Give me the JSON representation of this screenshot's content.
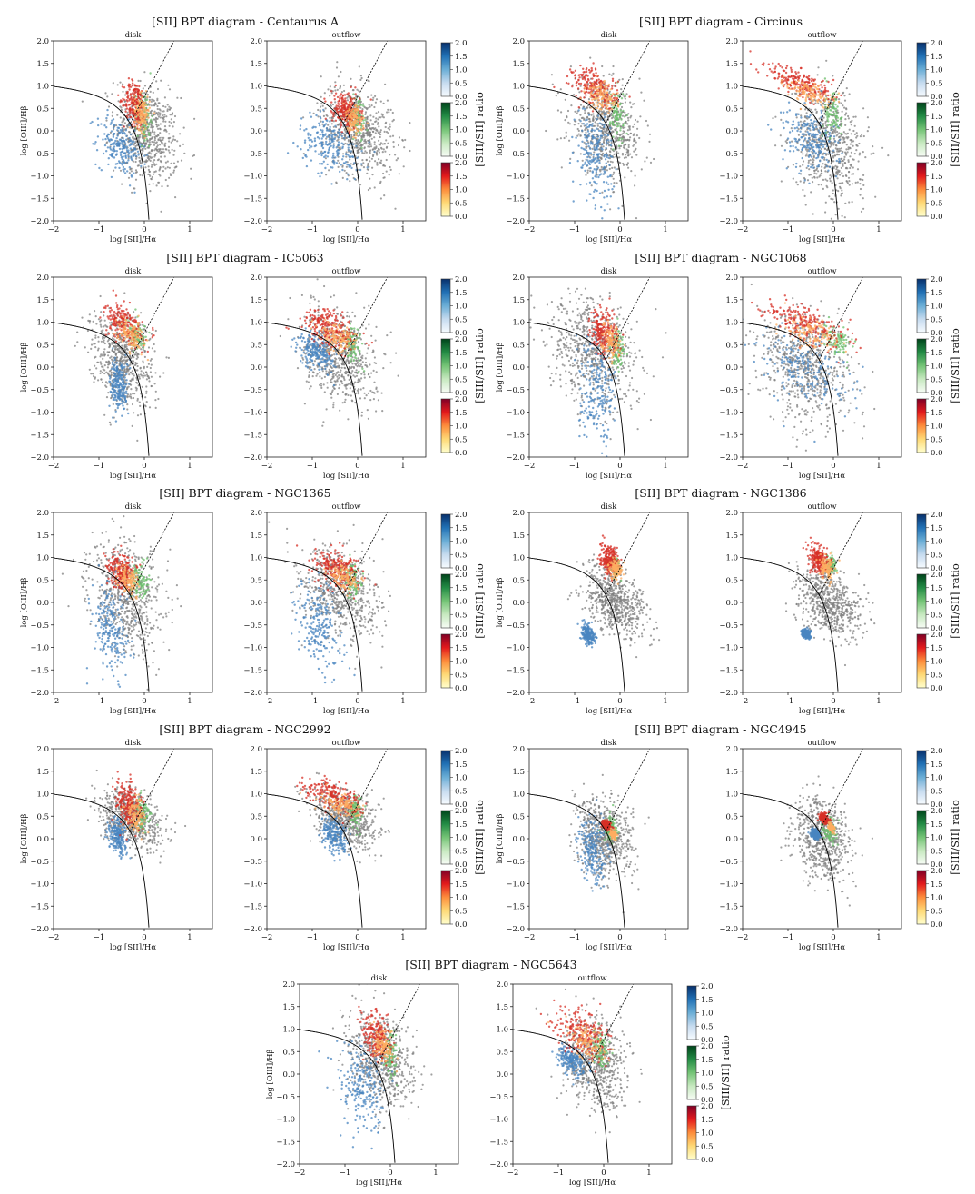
{
  "figure": {
    "panel_titles": [
      "disk",
      "outflow"
    ],
    "x_label": "log [SII]/Hα",
    "y_label": "log [OIII]/Hβ",
    "colorbar_label": "[SIII/SII] ratio",
    "colorbar_ticks": [
      "0.0",
      "0.5",
      "1.0",
      "1.5",
      "2.0"
    ],
    "x_ticks": [
      "−2",
      "−1",
      "0",
      "1"
    ],
    "y_ticks": [
      "−2.0",
      "−1.5",
      "−1.0",
      "−0.5",
      "0.0",
      "0.5",
      "1.0",
      "1.5",
      "2.0"
    ],
    "colors": {
      "star_forming": "#4a86c0",
      "liner": "#6cbf6c",
      "seyfert": "#d73027",
      "background": "#808080"
    }
  },
  "chart_data": [
    {
      "type": "scatter",
      "title": "[SII] BPT diagram - Centaurus A",
      "xlim": [
        -2,
        1.5
      ],
      "ylim": [
        -2,
        2
      ],
      "xlabel": "log [SII]/Hα",
      "ylabel": "log [OIII]/Hβ",
      "colorbar": {
        "label": "[SIII/SII] ratio",
        "range": [
          0,
          2
        ],
        "colormaps": [
          "Blues",
          "Greens",
          "YlOrRd"
        ]
      },
      "demarcation": {
        "max_starburst": "y = 0.72/(x - 0.32) + 1.30",
        "seyfert_liner": "y = 1.89x + 0.76"
      },
      "panels": [
        {
          "name": "disk"
        },
        {
          "name": "outflow"
        }
      ]
    },
    {
      "type": "scatter",
      "title": "[SII] BPT diagram - Circinus",
      "xlim": [
        -2,
        1.5
      ],
      "ylim": [
        -2,
        2
      ],
      "xlabel": "log [SII]/Hα",
      "ylabel": "log [OIII]/Hβ",
      "colorbar": {
        "label": "[SIII/SII] ratio",
        "range": [
          0,
          2
        ],
        "colormaps": [
          "Blues",
          "Greens",
          "YlOrRd"
        ]
      },
      "demarcation": {
        "max_starburst": "y = 0.72/(x - 0.32) + 1.30",
        "seyfert_liner": "y = 1.89x + 0.76"
      },
      "panels": [
        {
          "name": "disk"
        },
        {
          "name": "outflow"
        }
      ]
    },
    {
      "type": "scatter",
      "title": "[SII] BPT diagram - IC5063",
      "xlim": [
        -2,
        1.5
      ],
      "ylim": [
        -2,
        2
      ],
      "xlabel": "log [SII]/Hα",
      "ylabel": "log [OIII]/Hβ",
      "colorbar": {
        "label": "[SIII/SII] ratio",
        "range": [
          0,
          2
        ],
        "colormaps": [
          "Blues",
          "Greens",
          "YlOrRd"
        ]
      },
      "demarcation": {
        "max_starburst": "y = 0.72/(x - 0.32) + 1.30",
        "seyfert_liner": "y = 1.89x + 0.76"
      },
      "panels": [
        {
          "name": "disk"
        },
        {
          "name": "outflow"
        }
      ]
    },
    {
      "type": "scatter",
      "title": "[SII] BPT diagram - NGC1068",
      "xlim": [
        -2,
        1.5
      ],
      "ylim": [
        -2,
        2
      ],
      "xlabel": "log [SII]/Hα",
      "ylabel": "log [OIII]/Hβ",
      "colorbar": {
        "label": "[SIII/SII] ratio",
        "range": [
          0,
          2
        ],
        "colormaps": [
          "Blues",
          "Greens",
          "YlOrRd"
        ]
      },
      "demarcation": {
        "max_starburst": "y = 0.72/(x - 0.32) + 1.30",
        "seyfert_liner": "y = 1.89x + 0.76"
      },
      "panels": [
        {
          "name": "disk"
        },
        {
          "name": "outflow"
        }
      ]
    },
    {
      "type": "scatter",
      "title": "[SII] BPT diagram - NGC1365",
      "xlim": [
        -2,
        1.5
      ],
      "ylim": [
        -2,
        2
      ],
      "xlabel": "log [SII]/Hα",
      "ylabel": "log [OIII]/Hβ",
      "colorbar": {
        "label": "[SIII/SII] ratio",
        "range": [
          0,
          2
        ],
        "colormaps": [
          "Blues",
          "Greens",
          "YlOrRd"
        ]
      },
      "demarcation": {
        "max_starburst": "y = 0.72/(x - 0.32) + 1.30",
        "seyfert_liner": "y = 1.89x + 0.76"
      },
      "panels": [
        {
          "name": "disk"
        },
        {
          "name": "outflow"
        }
      ]
    },
    {
      "type": "scatter",
      "title": "[SII] BPT diagram - NGC1386",
      "xlim": [
        -2,
        1.5
      ],
      "ylim": [
        -2,
        2
      ],
      "xlabel": "log [SII]/Hα",
      "ylabel": "log [OIII]/Hβ",
      "colorbar": {
        "label": "[SIII/SII] ratio",
        "range": [
          0,
          2
        ],
        "colormaps": [
          "Blues",
          "Greens",
          "YlOrRd"
        ]
      },
      "demarcation": {
        "max_starburst": "y = 0.72/(x - 0.32) + 1.30",
        "seyfert_liner": "y = 1.89x + 0.76"
      },
      "panels": [
        {
          "name": "disk"
        },
        {
          "name": "outflow"
        }
      ]
    },
    {
      "type": "scatter",
      "title": "[SII] BPT diagram - NGC2992",
      "xlim": [
        -2,
        1.5
      ],
      "ylim": [
        -2,
        2
      ],
      "xlabel": "log [SII]/Hα",
      "ylabel": "log [OIII]/Hβ",
      "colorbar": {
        "label": "[SIII/SII] ratio",
        "range": [
          0,
          2
        ],
        "colormaps": [
          "Blues",
          "Greens",
          "YlOrRd"
        ]
      },
      "demarcation": {
        "max_starburst": "y = 0.72/(x - 0.32) + 1.30",
        "seyfert_liner": "y = 1.89x + 0.76"
      },
      "panels": [
        {
          "name": "disk"
        },
        {
          "name": "outflow"
        }
      ]
    },
    {
      "type": "scatter",
      "title": "[SII] BPT diagram - NGC4945",
      "xlim": [
        -2,
        1.5
      ],
      "ylim": [
        -2,
        2
      ],
      "xlabel": "log [SII]/Hα",
      "ylabel": "log [OIII]/Hβ",
      "colorbar": {
        "label": "[SIII/SII] ratio",
        "range": [
          0,
          2
        ],
        "colormaps": [
          "Blues",
          "Greens",
          "YlOrRd"
        ]
      },
      "demarcation": {
        "max_starburst": "y = 0.72/(x - 0.32) + 1.30",
        "seyfert_liner": "y = 1.89x + 0.76"
      },
      "panels": [
        {
          "name": "disk"
        },
        {
          "name": "outflow"
        }
      ]
    },
    {
      "type": "scatter",
      "title": "[SII] BPT diagram - NGC5643",
      "xlim": [
        -2,
        1.5
      ],
      "ylim": [
        -2,
        2
      ],
      "xlabel": "log [SII]/Hα",
      "ylabel": "log [OIII]/Hβ",
      "colorbar": {
        "label": "[SIII/SII] ratio",
        "range": [
          0,
          2
        ],
        "colormaps": [
          "Blues",
          "Greens",
          "YlOrRd"
        ]
      },
      "demarcation": {
        "max_starburst": "y = 0.72/(x - 0.32) + 1.30",
        "seyfert_liner": "y = 1.89x + 0.76"
      },
      "panels": [
        {
          "name": "disk"
        },
        {
          "name": "outflow"
        }
      ]
    }
  ]
}
